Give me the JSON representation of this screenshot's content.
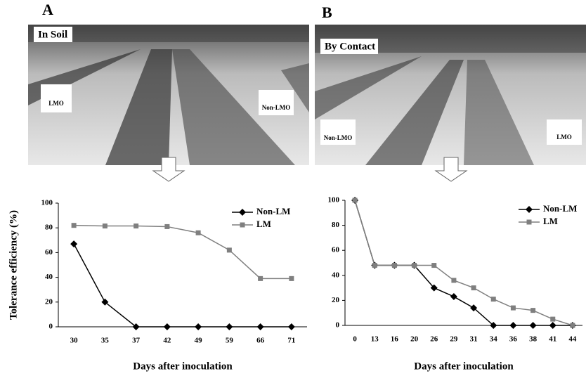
{
  "panels": [
    {
      "letter": "A",
      "photo_label": "In Soil",
      "signs": [
        "LMO",
        "Non-LMO"
      ]
    },
    {
      "letter": "B",
      "photo_label": "By Contact",
      "signs": [
        "Non-LMO",
        "LMO"
      ]
    }
  ],
  "chart_data": [
    {
      "type": "line",
      "y_label": "Tolerance efficiency (%)",
      "x_label": "Days after inoculation",
      "categories": [
        "30",
        "35",
        "37",
        "42",
        "49",
        "59",
        "66",
        "71"
      ],
      "series": [
        {
          "name": "Non-LM",
          "color": "#000000",
          "marker": "diamond",
          "values": [
            67,
            20,
            0,
            0,
            0,
            0,
            0,
            0
          ]
        },
        {
          "name": "LM",
          "color": "#7f7f7f",
          "marker": "square",
          "values": [
            82,
            81.5,
            81.5,
            81,
            76,
            62,
            39,
            39
          ]
        }
      ],
      "ylim": [
        0,
        100
      ],
      "yticks": [
        0,
        20,
        40,
        60,
        80,
        100
      ],
      "legend": "upper right"
    },
    {
      "type": "line",
      "x_label": "Days after inoculation",
      "categories": [
        "0",
        "13",
        "16",
        "20",
        "26",
        "29",
        "31",
        "34",
        "36",
        "38",
        "41",
        "44"
      ],
      "series": [
        {
          "name": "Non-LM",
          "color": "#000000",
          "marker": "diamond",
          "values": [
            100,
            48,
            48,
            48,
            30,
            23,
            14,
            0,
            0,
            0,
            0,
            0
          ]
        },
        {
          "name": "LM",
          "color": "#7f7f7f",
          "marker": "square",
          "values": [
            100,
            48,
            48,
            48,
            48,
            36,
            30,
            21,
            14,
            12,
            5,
            0
          ]
        }
      ],
      "ylim": [
        0,
        100
      ],
      "yticks": [
        0,
        20,
        40,
        60,
        80,
        100
      ],
      "legend": "upper right"
    }
  ]
}
